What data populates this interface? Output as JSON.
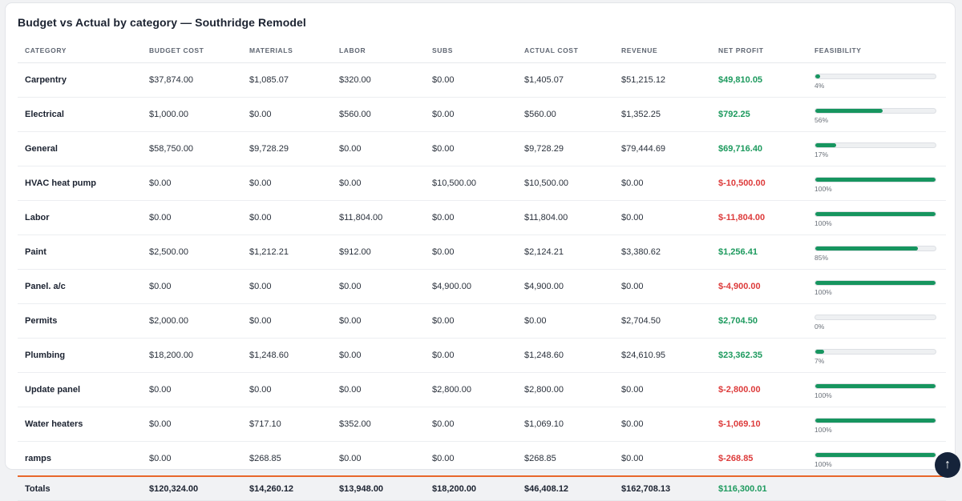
{
  "title": "Budget vs Actual by category — Southridge Remodel",
  "columns": [
    "CATEGORY",
    "BUDGET COST",
    "MATERIALS",
    "LABOR",
    "SUBS",
    "ACTUAL COST",
    "REVENUE",
    "NET PROFIT",
    "FEASIBILITY"
  ],
  "rows": [
    {
      "category": "Carpentry",
      "budget": "$37,874.00",
      "materials": "$1,085.07",
      "labor": "$320.00",
      "subs": "$0.00",
      "actual": "$1,405.07",
      "revenue": "$51,215.12",
      "net": "$49,810.05",
      "net_sign": "pos",
      "feasibility": 4,
      "feasibility_label": "4%"
    },
    {
      "category": "Electrical",
      "budget": "$1,000.00",
      "materials": "$0.00",
      "labor": "$560.00",
      "subs": "$0.00",
      "actual": "$560.00",
      "revenue": "$1,352.25",
      "net": "$792.25",
      "net_sign": "pos",
      "feasibility": 56,
      "feasibility_label": "56%"
    },
    {
      "category": "General",
      "budget": "$58,750.00",
      "materials": "$9,728.29",
      "labor": "$0.00",
      "subs": "$0.00",
      "actual": "$9,728.29",
      "revenue": "$79,444.69",
      "net": "$69,716.40",
      "net_sign": "pos",
      "feasibility": 17,
      "feasibility_label": "17%"
    },
    {
      "category": "HVAC heat pump",
      "budget": "$0.00",
      "materials": "$0.00",
      "labor": "$0.00",
      "subs": "$10,500.00",
      "actual": "$10,500.00",
      "revenue": "$0.00",
      "net": "$-10,500.00",
      "net_sign": "neg",
      "feasibility": 100,
      "feasibility_label": "100%"
    },
    {
      "category": "Labor",
      "budget": "$0.00",
      "materials": "$0.00",
      "labor": "$11,804.00",
      "subs": "$0.00",
      "actual": "$11,804.00",
      "revenue": "$0.00",
      "net": "$-11,804.00",
      "net_sign": "neg",
      "feasibility": 100,
      "feasibility_label": "100%"
    },
    {
      "category": "Paint",
      "budget": "$2,500.00",
      "materials": "$1,212.21",
      "labor": "$912.00",
      "subs": "$0.00",
      "actual": "$2,124.21",
      "revenue": "$3,380.62",
      "net": "$1,256.41",
      "net_sign": "pos",
      "feasibility": 85,
      "feasibility_label": "85%"
    },
    {
      "category": "Panel. a/c",
      "budget": "$0.00",
      "materials": "$0.00",
      "labor": "$0.00",
      "subs": "$4,900.00",
      "actual": "$4,900.00",
      "revenue": "$0.00",
      "net": "$-4,900.00",
      "net_sign": "neg",
      "feasibility": 100,
      "feasibility_label": "100%"
    },
    {
      "category": "Permits",
      "budget": "$2,000.00",
      "materials": "$0.00",
      "labor": "$0.00",
      "subs": "$0.00",
      "actual": "$0.00",
      "revenue": "$2,704.50",
      "net": "$2,704.50",
      "net_sign": "pos",
      "feasibility": 0,
      "feasibility_label": "0%"
    },
    {
      "category": "Plumbing",
      "budget": "$18,200.00",
      "materials": "$1,248.60",
      "labor": "$0.00",
      "subs": "$0.00",
      "actual": "$1,248.60",
      "revenue": "$24,610.95",
      "net": "$23,362.35",
      "net_sign": "pos",
      "feasibility": 7,
      "feasibility_label": "7%"
    },
    {
      "category": "Update panel",
      "budget": "$0.00",
      "materials": "$0.00",
      "labor": "$0.00",
      "subs": "$2,800.00",
      "actual": "$2,800.00",
      "revenue": "$0.00",
      "net": "$-2,800.00",
      "net_sign": "neg",
      "feasibility": 100,
      "feasibility_label": "100%"
    },
    {
      "category": "Water heaters",
      "budget": "$0.00",
      "materials": "$717.10",
      "labor": "$352.00",
      "subs": "$0.00",
      "actual": "$1,069.10",
      "revenue": "$0.00",
      "net": "$-1,069.10",
      "net_sign": "neg",
      "feasibility": 100,
      "feasibility_label": "100%"
    },
    {
      "category": "ramps",
      "budget": "$0.00",
      "materials": "$268.85",
      "labor": "$0.00",
      "subs": "$0.00",
      "actual": "$268.85",
      "revenue": "$0.00",
      "net": "$-268.85",
      "net_sign": "neg",
      "feasibility": 100,
      "feasibility_label": "100%"
    }
  ],
  "totals": {
    "label": "Totals",
    "budget": "$120,324.00",
    "materials": "$14,260.12",
    "labor": "$13,948.00",
    "subs": "$18,200.00",
    "actual": "$46,408.12",
    "revenue": "$162,708.13",
    "net": "$116,300.01"
  },
  "scroll_top_icon": "arrow-up-icon",
  "colors": {
    "positive": "#1d9a5e",
    "negative": "#dd3b3b",
    "bar": "#16955f",
    "totals_rule": "#e8672b",
    "scroll_button": "#15233a"
  }
}
